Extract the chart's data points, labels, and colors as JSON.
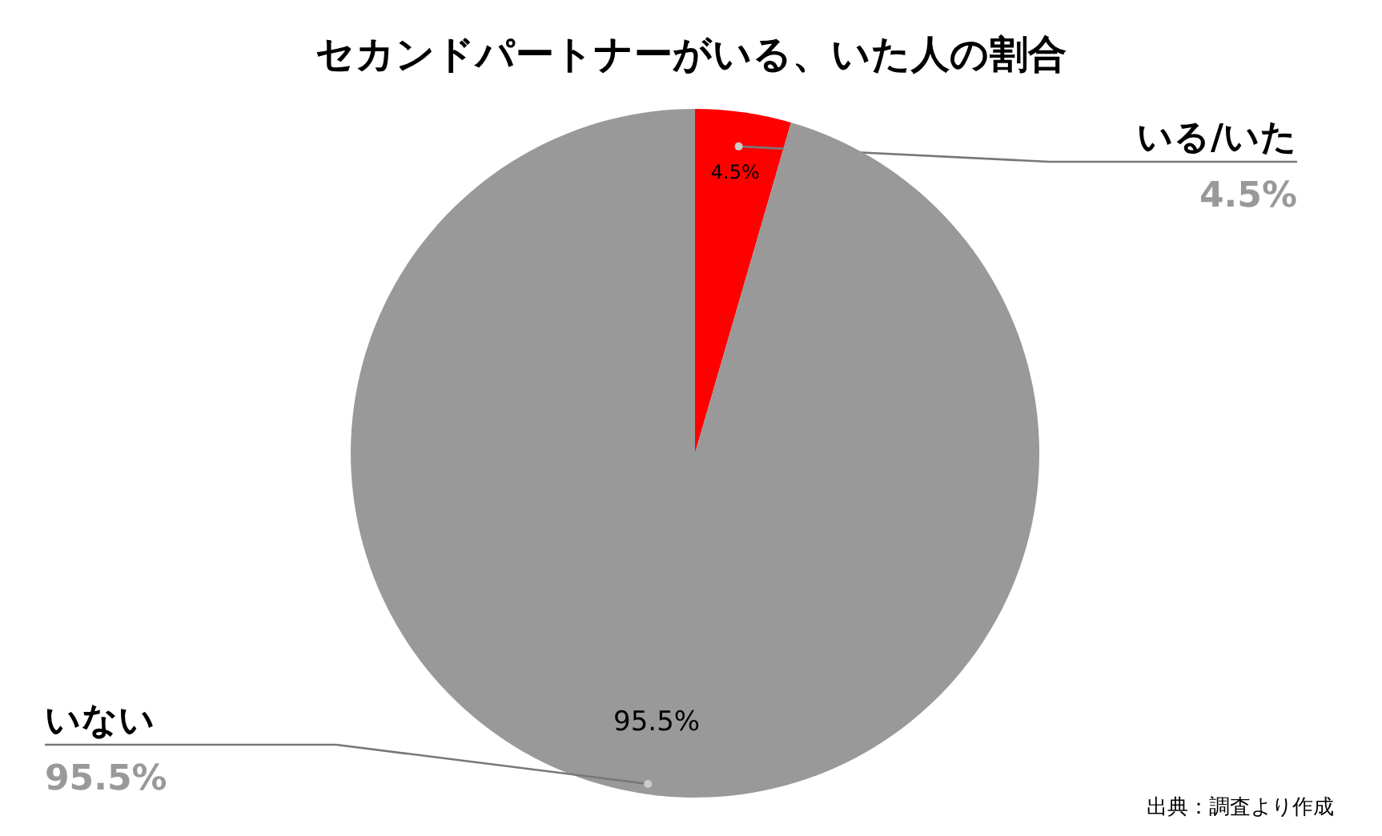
{
  "chart_data": {
    "type": "pie",
    "title": "セカンドパートナーがいる、いた人の割合",
    "categories": [
      "いる/いた",
      "いない"
    ],
    "values": [
      4.5,
      95.5
    ],
    "colors": [
      "#ff0000",
      "#999999"
    ],
    "value_labels": [
      "4.5%",
      "95.5%"
    ],
    "annotations": [
      "出典：調査より作成"
    ]
  }
}
